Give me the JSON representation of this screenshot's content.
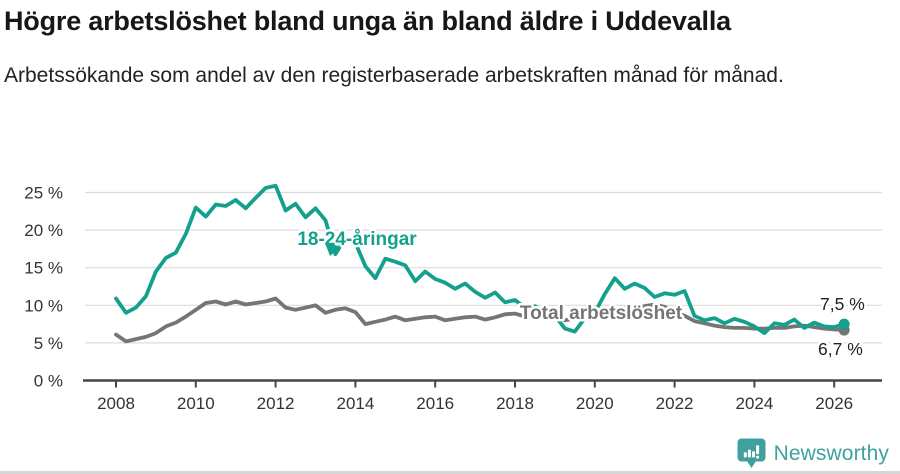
{
  "header": {
    "title": "Högre arbetslöshet bland unga än bland äldre i Uddevalla",
    "subtitle": "Arbetssökande som andel av den registerbaserade arbetskraften månad för månad."
  },
  "chart_data": {
    "type": "line",
    "title": "Högre arbetslöshet bland unga än bland äldre i Uddevalla",
    "subtitle": "Arbetssökande som andel av den registerbaserade arbetskraften månad för månad.",
    "unit": "%",
    "grid": true,
    "legend_position": "inline-labels",
    "x_axis": {
      "tick_labels": [
        "2008",
        "2010",
        "2012",
        "2014",
        "2016",
        "2018",
        "2020",
        "2022",
        "2024",
        "2026"
      ],
      "range": [
        2007.2,
        2027.2
      ]
    },
    "y_axis": {
      "tick_labels": [
        "0 %",
        "5 %",
        "10 %",
        "15 %",
        "20 %",
        "25 %"
      ],
      "tick_values": [
        0,
        5,
        10,
        15,
        20,
        25
      ],
      "range": [
        0,
        27.5
      ]
    },
    "x_start": 2008.0,
    "x_step_years": 0.25,
    "series": [
      {
        "name": "18-24-åringar",
        "color": "#13a18e",
        "end_label": "7,5 %",
        "end_value": 7.5,
        "values": [
          10.9,
          9.0,
          9.7,
          11.2,
          14.5,
          16.3,
          17.0,
          19.5,
          23.0,
          21.8,
          23.4,
          23.2,
          24.0,
          22.9,
          24.3,
          25.6,
          25.9,
          22.6,
          23.5,
          21.7,
          22.9,
          21.3,
          16.8,
          19.0,
          18.3,
          15.2,
          13.6,
          16.2,
          15.8,
          15.3,
          13.2,
          14.5,
          13.5,
          13.0,
          12.2,
          12.9,
          11.8,
          11.0,
          11.7,
          10.4,
          10.7,
          9.7,
          9.9,
          9.0,
          8.6,
          6.9,
          6.5,
          8.3,
          9.0,
          11.5,
          13.6,
          12.2,
          12.9,
          12.3,
          11.1,
          11.6,
          11.4,
          11.9,
          8.6,
          8.0,
          8.3,
          7.6,
          8.2,
          7.8,
          7.2,
          6.3,
          7.6,
          7.4,
          8.1,
          7.0,
          7.7,
          7.2,
          7.1,
          7.5
        ]
      },
      {
        "name": "Total arbetslöshet",
        "color": "#757575",
        "end_label": "6,7 %",
        "end_value": 6.7,
        "values": [
          6.1,
          5.2,
          5.5,
          5.8,
          6.3,
          7.2,
          7.7,
          8.5,
          9.4,
          10.3,
          10.5,
          10.1,
          10.5,
          10.1,
          10.3,
          10.5,
          10.9,
          9.7,
          9.4,
          9.7,
          10.0,
          9.0,
          9.4,
          9.6,
          9.1,
          7.5,
          7.8,
          8.1,
          8.5,
          8.0,
          8.2,
          8.4,
          8.5,
          8.0,
          8.2,
          8.4,
          8.5,
          8.1,
          8.4,
          8.8,
          8.9,
          8.5,
          8.6,
          8.4,
          8.3,
          8.0,
          8.2,
          8.5,
          8.7,
          9.2,
          9.5,
          9.6,
          9.7,
          9.9,
          10.1,
          9.8,
          9.2,
          8.6,
          7.9,
          7.6,
          7.3,
          7.1,
          7.0,
          7.0,
          6.9,
          6.9,
          7.0,
          7.0,
          7.2,
          7.3,
          7.1,
          6.9,
          6.8,
          6.7
        ]
      }
    ]
  },
  "footer": {
    "brand": "Newsworthy",
    "brand_color": "#40a0a0"
  }
}
